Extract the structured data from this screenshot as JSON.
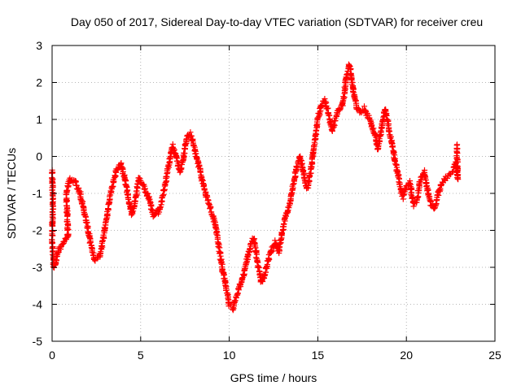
{
  "colors": {
    "series": "#ff0000",
    "axis": "#000000",
    "grid": "#a0a0a0",
    "background": "#ffffff"
  },
  "chart_data": {
    "type": "scatter",
    "title": "Day 050 of 2017, Sidereal Day-to-day VTEC variation (SDTVAR) for receiver creu",
    "xlabel": "GPS time / hours",
    "ylabel": "SDTVAR / TECUs",
    "xlim": [
      0,
      25
    ],
    "ylim": [
      -5,
      3
    ],
    "xticks": [
      0,
      5,
      10,
      15,
      20,
      25
    ],
    "yticks": [
      -5,
      -4,
      -3,
      -2,
      -1,
      0,
      1,
      2,
      3
    ],
    "grid": true,
    "marker": "plus",
    "series": [
      {
        "name": "SDTVAR",
        "trace": [
          [
            0.0,
            -0.4
          ],
          [
            0.05,
            -1.2
          ],
          [
            0.0,
            -2.3
          ],
          [
            0.1,
            -3.0
          ],
          [
            0.4,
            -2.5
          ],
          [
            0.7,
            -2.3
          ],
          [
            0.9,
            -2.1
          ],
          [
            0.8,
            -1.0
          ],
          [
            1.0,
            -0.6
          ],
          [
            1.3,
            -0.7
          ],
          [
            1.6,
            -1.0
          ],
          [
            1.8,
            -1.5
          ],
          [
            2.0,
            -1.9
          ],
          [
            2.2,
            -2.4
          ],
          [
            2.4,
            -2.8
          ],
          [
            2.7,
            -2.7
          ],
          [
            2.9,
            -2.2
          ],
          [
            3.1,
            -1.6
          ],
          [
            3.3,
            -1.0
          ],
          [
            3.6,
            -0.4
          ],
          [
            3.9,
            -0.2
          ],
          [
            4.1,
            -0.6
          ],
          [
            4.3,
            -1.1
          ],
          [
            4.5,
            -1.6
          ],
          [
            4.7,
            -1.2
          ],
          [
            4.9,
            -0.6
          ],
          [
            5.2,
            -0.8
          ],
          [
            5.5,
            -1.2
          ],
          [
            5.7,
            -1.6
          ],
          [
            6.0,
            -1.5
          ],
          [
            6.2,
            -1.2
          ],
          [
            6.4,
            -0.7
          ],
          [
            6.6,
            -0.2
          ],
          [
            6.8,
            0.3
          ],
          [
            7.0,
            0.0
          ],
          [
            7.2,
            -0.4
          ],
          [
            7.4,
            -0.1
          ],
          [
            7.6,
            0.5
          ],
          [
            7.8,
            0.6
          ],
          [
            8.0,
            0.3
          ],
          [
            8.2,
            -0.1
          ],
          [
            8.4,
            -0.5
          ],
          [
            8.6,
            -0.9
          ],
          [
            8.8,
            -1.2
          ],
          [
            9.0,
            -1.5
          ],
          [
            9.2,
            -1.8
          ],
          [
            9.4,
            -2.4
          ],
          [
            9.6,
            -3.0
          ],
          [
            9.8,
            -3.5
          ],
          [
            10.0,
            -4.0
          ],
          [
            10.2,
            -4.1
          ],
          [
            10.4,
            -3.8
          ],
          [
            10.6,
            -3.5
          ],
          [
            10.8,
            -3.2
          ],
          [
            11.0,
            -2.8
          ],
          [
            11.2,
            -2.4
          ],
          [
            11.4,
            -2.2
          ],
          [
            11.6,
            -2.9
          ],
          [
            11.8,
            -3.4
          ],
          [
            12.0,
            -3.2
          ],
          [
            12.2,
            -2.8
          ],
          [
            12.4,
            -2.5
          ],
          [
            12.6,
            -2.3
          ],
          [
            12.8,
            -2.6
          ],
          [
            13.0,
            -2.0
          ],
          [
            13.2,
            -1.6
          ],
          [
            13.4,
            -1.3
          ],
          [
            13.6,
            -0.8
          ],
          [
            13.8,
            -0.3
          ],
          [
            14.0,
            0.0
          ],
          [
            14.2,
            -0.5
          ],
          [
            14.4,
            -0.9
          ],
          [
            14.6,
            -0.4
          ],
          [
            14.8,
            0.3
          ],
          [
            15.0,
            1.0
          ],
          [
            15.2,
            1.4
          ],
          [
            15.4,
            1.5
          ],
          [
            15.6,
            1.2
          ],
          [
            15.8,
            0.7
          ],
          [
            16.0,
            1.0
          ],
          [
            16.2,
            1.3
          ],
          [
            16.4,
            1.4
          ],
          [
            16.6,
            2.1
          ],
          [
            16.8,
            2.5
          ],
          [
            17.0,
            1.8
          ],
          [
            17.2,
            1.3
          ],
          [
            17.4,
            1.2
          ],
          [
            17.6,
            1.3
          ],
          [
            17.8,
            1.1
          ],
          [
            18.0,
            0.9
          ],
          [
            18.2,
            0.6
          ],
          [
            18.4,
            0.2
          ],
          [
            18.6,
            0.8
          ],
          [
            18.8,
            1.3
          ],
          [
            19.0,
            0.8
          ],
          [
            19.2,
            0.3
          ],
          [
            19.4,
            -0.2
          ],
          [
            19.6,
            -0.7
          ],
          [
            19.8,
            -1.1
          ],
          [
            20.0,
            -0.8
          ],
          [
            20.2,
            -0.7
          ],
          [
            20.4,
            -1.3
          ],
          [
            20.6,
            -1.2
          ],
          [
            20.8,
            -0.6
          ],
          [
            21.0,
            -0.4
          ],
          [
            21.2,
            -0.9
          ],
          [
            21.4,
            -1.3
          ],
          [
            21.6,
            -1.4
          ],
          [
            21.8,
            -1.0
          ],
          [
            22.0,
            -0.7
          ],
          [
            22.2,
            -0.6
          ],
          [
            22.4,
            -0.5
          ],
          [
            22.6,
            -0.4
          ],
          [
            22.8,
            -0.2
          ],
          [
            22.9,
            -0.6
          ],
          [
            22.85,
            0.3
          ]
        ]
      }
    ]
  }
}
